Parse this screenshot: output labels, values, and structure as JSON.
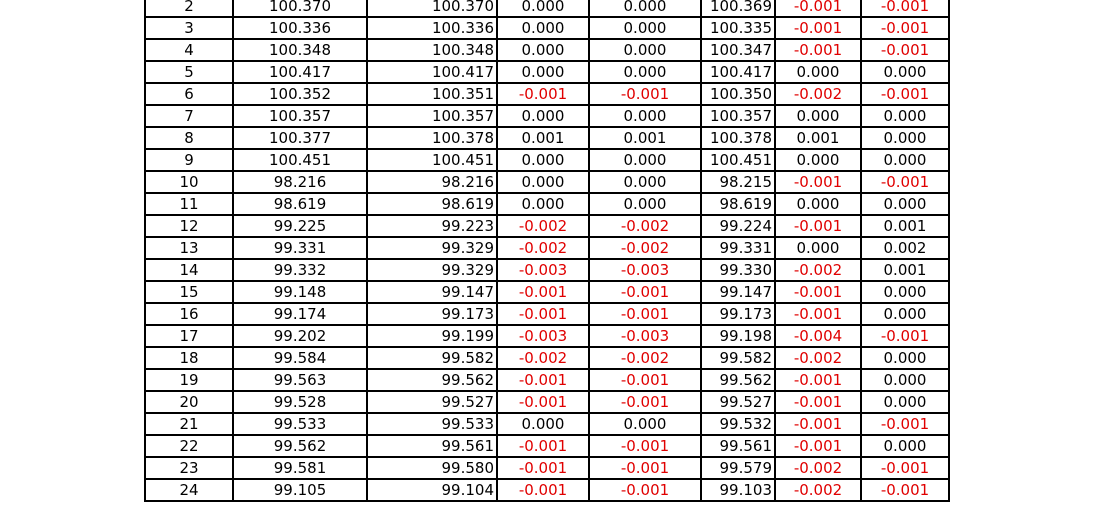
{
  "table": {
    "rows": [
      [
        "2",
        "100.370",
        "100.370",
        "0.000",
        "0.000",
        "100.369",
        "-0.001",
        "-0.001"
      ],
      [
        "3",
        "100.336",
        "100.336",
        "0.000",
        "0.000",
        "100.335",
        "-0.001",
        "-0.001"
      ],
      [
        "4",
        "100.348",
        "100.348",
        "0.000",
        "0.000",
        "100.347",
        "-0.001",
        "-0.001"
      ],
      [
        "5",
        "100.417",
        "100.417",
        "0.000",
        "0.000",
        "100.417",
        "0.000",
        "0.000"
      ],
      [
        "6",
        "100.352",
        "100.351",
        "-0.001",
        "-0.001",
        "100.350",
        "-0.002",
        "-0.001"
      ],
      [
        "7",
        "100.357",
        "100.357",
        "0.000",
        "0.000",
        "100.357",
        "0.000",
        "0.000"
      ],
      [
        "8",
        "100.377",
        "100.378",
        "0.001",
        "0.001",
        "100.378",
        "0.001",
        "0.000"
      ],
      [
        "9",
        "100.451",
        "100.451",
        "0.000",
        "0.000",
        "100.451",
        "0.000",
        "0.000"
      ],
      [
        "10",
        "98.216",
        "98.216",
        "0.000",
        "0.000",
        "98.215",
        "-0.001",
        "-0.001"
      ],
      [
        "11",
        "98.619",
        "98.619",
        "0.000",
        "0.000",
        "98.619",
        "0.000",
        "0.000"
      ],
      [
        "12",
        "99.225",
        "99.223",
        "-0.002",
        "-0.002",
        "99.224",
        "-0.001",
        "0.001"
      ],
      [
        "13",
        "99.331",
        "99.329",
        "-0.002",
        "-0.002",
        "99.331",
        "0.000",
        "0.002"
      ],
      [
        "14",
        "99.332",
        "99.329",
        "-0.003",
        "-0.003",
        "99.330",
        "-0.002",
        "0.001"
      ],
      [
        "15",
        "99.148",
        "99.147",
        "-0.001",
        "-0.001",
        "99.147",
        "-0.001",
        "0.000"
      ],
      [
        "16",
        "99.174",
        "99.173",
        "-0.001",
        "-0.001",
        "99.173",
        "-0.001",
        "0.000"
      ],
      [
        "17",
        "99.202",
        "99.199",
        "-0.003",
        "-0.003",
        "99.198",
        "-0.004",
        "-0.001"
      ],
      [
        "18",
        "99.584",
        "99.582",
        "-0.002",
        "-0.002",
        "99.582",
        "-0.002",
        "0.000"
      ],
      [
        "19",
        "99.563",
        "99.562",
        "-0.001",
        "-0.001",
        "99.562",
        "-0.001",
        "0.000"
      ],
      [
        "20",
        "99.528",
        "99.527",
        "-0.001",
        "-0.001",
        "99.527",
        "-0.001",
        "0.000"
      ],
      [
        "21",
        "99.533",
        "99.533",
        "0.000",
        "0.000",
        "99.532",
        "-0.001",
        "-0.001"
      ],
      [
        "22",
        "99.562",
        "99.561",
        "-0.001",
        "-0.001",
        "99.561",
        "-0.001",
        "0.000"
      ],
      [
        "23",
        "99.581",
        "99.580",
        "-0.001",
        "-0.001",
        "99.579",
        "-0.002",
        "-0.001"
      ],
      [
        "24",
        "99.105",
        "99.104",
        "-0.001",
        "-0.001",
        "99.103",
        "-0.002",
        "-0.001"
      ]
    ]
  },
  "colors": {
    "negative": "#e00000",
    "text": "#000000",
    "border": "#000000"
  }
}
